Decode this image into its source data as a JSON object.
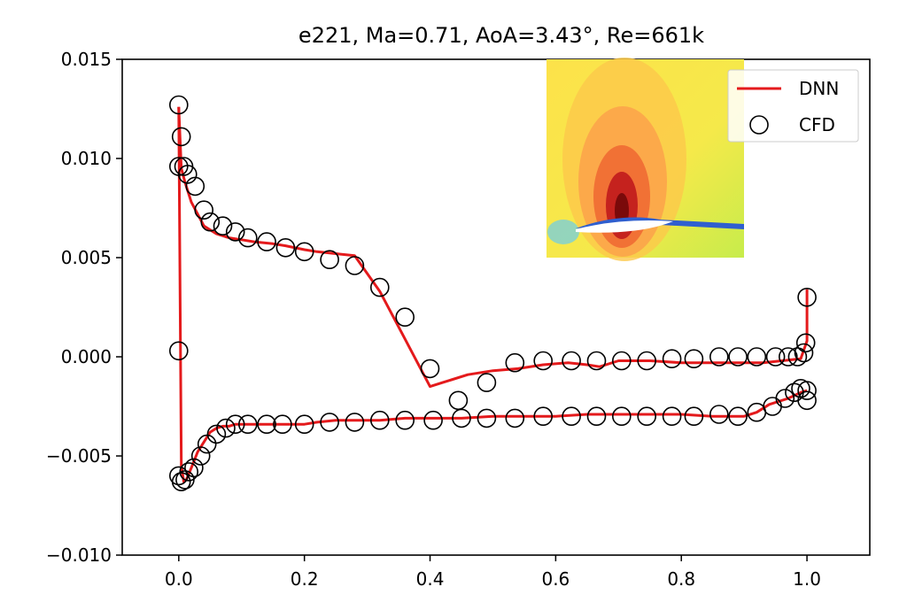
{
  "chart_data": {
    "type": "line",
    "title": "e221, Ma=0.71, AoA=3.43°, Re=661k",
    "xlabel": "",
    "ylabel": "",
    "xlim": [
      -0.09,
      1.1
    ],
    "ylim": [
      -0.01,
      0.015
    ],
    "x_ticks": [
      0.0,
      0.2,
      0.4,
      0.6,
      0.8,
      1.0
    ],
    "x_tick_labels": [
      "0.0",
      "0.2",
      "0.4",
      "0.6",
      "0.8",
      "1.0"
    ],
    "y_ticks": [
      0.015,
      0.01,
      0.005,
      0.0,
      -0.005,
      -0.01
    ],
    "y_tick_labels": [
      "0.015",
      "0.010",
      "0.005",
      "0.000",
      "−0.005",
      "−0.010"
    ],
    "grid": false,
    "legend_position": "top-right",
    "inset": "flow-field contour image of airfoil (top-right)",
    "series": [
      {
        "name": "DNN",
        "style": "line",
        "color": "#e41a1c",
        "x": [
          1.0,
          1.0,
          0.99,
          0.96,
          0.93,
          0.9,
          0.85,
          0.8,
          0.75,
          0.7,
          0.67,
          0.65,
          0.62,
          0.58,
          0.54,
          0.5,
          0.46,
          0.42,
          0.4,
          0.36,
          0.32,
          0.28,
          0.25,
          0.22,
          0.2,
          0.17,
          0.15,
          0.12,
          0.1,
          0.08,
          0.06,
          0.04,
          0.03,
          0.02,
          0.01,
          0.004,
          0.0
        ],
        "y": [
          0.0034,
          0.0008,
          -0.0001,
          -0.0002,
          -0.0003,
          -0.0003,
          -0.0003,
          -0.0003,
          -0.0002,
          -0.0002,
          -0.0005,
          -0.0004,
          -0.0003,
          -0.0004,
          -0.0006,
          -0.0007,
          -0.0009,
          -0.0013,
          -0.0015,
          0.0009,
          0.0033,
          0.0051,
          0.0052,
          0.0053,
          0.0054,
          0.0056,
          0.0057,
          0.0058,
          0.0059,
          0.006,
          0.0062,
          0.0066,
          0.0072,
          0.0078,
          0.0088,
          0.0095,
          0.0126
        ],
        "y_lower": [
          -0.0017,
          -0.0018,
          -0.0021,
          -0.0024,
          -0.0028,
          -0.003,
          -0.003,
          -0.0029,
          -0.0029,
          -0.0029,
          -0.0029,
          -0.003,
          -0.003,
          -0.003,
          -0.0031,
          -0.0031,
          -0.0031,
          -0.0032,
          -0.0032,
          -0.0032,
          -0.0033,
          -0.0034,
          -0.0034,
          -0.0034,
          -0.0034,
          -0.0034,
          -0.0034,
          -0.0035,
          -0.0035,
          -0.0036,
          -0.0038,
          -0.0043,
          -0.0048,
          -0.0056,
          -0.0062,
          -0.0063,
          -0.0055
        ],
        "x_lower": [
          1.0,
          0.99,
          0.97,
          0.94,
          0.92,
          0.9,
          0.85,
          0.8,
          0.75,
          0.7,
          0.65,
          0.6,
          0.55,
          0.5,
          0.45,
          0.4,
          0.36,
          0.32,
          0.28,
          0.25,
          0.22,
          0.2,
          0.17,
          0.15,
          0.12,
          0.1,
          0.09,
          0.08,
          0.07,
          0.06,
          0.05,
          0.04,
          0.03,
          0.02,
          0.012,
          0.008,
          0.004
        ]
      },
      {
        "name": "CFD",
        "style": "scatter",
        "color": "#000000",
        "points": [
          [
            0.0,
            0.0127
          ],
          [
            0.004,
            0.0111
          ],
          [
            0.0,
            0.0096
          ],
          [
            0.008,
            0.0096
          ],
          [
            0.014,
            0.0092
          ],
          [
            0.026,
            0.0086
          ],
          [
            0.04,
            0.0074
          ],
          [
            0.05,
            0.0068
          ],
          [
            0.07,
            0.0066
          ],
          [
            0.09,
            0.0063
          ],
          [
            0.11,
            0.006
          ],
          [
            0.14,
            0.0058
          ],
          [
            0.17,
            0.0055
          ],
          [
            0.2,
            0.0053
          ],
          [
            0.24,
            0.0049
          ],
          [
            0.28,
            0.0046
          ],
          [
            0.32,
            0.0035
          ],
          [
            0.36,
            0.002
          ],
          [
            0.4,
            -0.0006
          ],
          [
            0.445,
            -0.0022
          ],
          [
            0.49,
            -0.0013
          ],
          [
            0.535,
            -0.0003
          ],
          [
            0.58,
            -0.0002
          ],
          [
            0.625,
            -0.0002
          ],
          [
            0.665,
            -0.0002
          ],
          [
            0.705,
            -0.0002
          ],
          [
            0.745,
            -0.0002
          ],
          [
            0.785,
            -0.0001
          ],
          [
            0.82,
            -0.0001
          ],
          [
            0.86,
            0.0
          ],
          [
            0.89,
            0.0
          ],
          [
            0.92,
            0.0
          ],
          [
            0.95,
            0.0
          ],
          [
            0.97,
            0.0
          ],
          [
            0.985,
            0.0
          ],
          [
            0.995,
            0.0002
          ],
          [
            0.998,
            0.0007
          ],
          [
            1.0,
            0.003
          ],
          [
            0.0,
            0.0003
          ],
          [
            0.0,
            -0.006
          ],
          [
            0.004,
            -0.0063
          ],
          [
            0.01,
            -0.0062
          ],
          [
            0.016,
            -0.0058
          ],
          [
            0.024,
            -0.0056
          ],
          [
            0.035,
            -0.005
          ],
          [
            0.045,
            -0.0044
          ],
          [
            0.06,
            -0.0039
          ],
          [
            0.075,
            -0.0036
          ],
          [
            0.09,
            -0.0034
          ],
          [
            0.11,
            -0.0034
          ],
          [
            0.14,
            -0.0034
          ],
          [
            0.165,
            -0.0034
          ],
          [
            0.2,
            -0.0034
          ],
          [
            0.24,
            -0.0033
          ],
          [
            0.28,
            -0.0033
          ],
          [
            0.32,
            -0.0032
          ],
          [
            0.36,
            -0.0032
          ],
          [
            0.405,
            -0.0032
          ],
          [
            0.45,
            -0.0031
          ],
          [
            0.49,
            -0.0031
          ],
          [
            0.535,
            -0.0031
          ],
          [
            0.58,
            -0.003
          ],
          [
            0.625,
            -0.003
          ],
          [
            0.665,
            -0.003
          ],
          [
            0.705,
            -0.003
          ],
          [
            0.745,
            -0.003
          ],
          [
            0.785,
            -0.003
          ],
          [
            0.82,
            -0.003
          ],
          [
            0.86,
            -0.0029
          ],
          [
            0.89,
            -0.003
          ],
          [
            0.92,
            -0.0028
          ],
          [
            0.945,
            -0.0025
          ],
          [
            0.965,
            -0.0021
          ],
          [
            0.98,
            -0.0018
          ],
          [
            0.99,
            -0.0016
          ],
          [
            1.0,
            -0.0017
          ],
          [
            1.0,
            -0.0022
          ]
        ]
      }
    ]
  }
}
